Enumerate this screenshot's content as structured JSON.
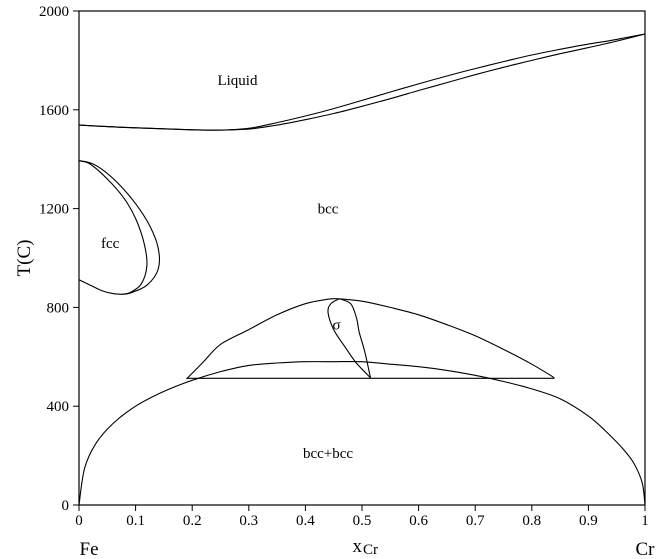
{
  "chart_data": {
    "type": "line",
    "title": "",
    "xlabel": "x",
    "xlabel_sub": "Cr",
    "ylabel": "T(C)",
    "xlim": [
      0,
      1
    ],
    "ylim": [
      0,
      2000
    ],
    "x_ticks": [
      "0",
      "0.1",
      "0.2",
      "0.3",
      "0.4",
      "0.5",
      "0.6",
      "0.7",
      "0.8",
      "0.9",
      "1"
    ],
    "y_ticks": [
      "0",
      "400",
      "800",
      "1200",
      "1600",
      "2000"
    ],
    "endpoint_labels": {
      "left": "Fe",
      "right": "Cr"
    },
    "grid": false,
    "legend": "none",
    "region_labels": [
      {
        "text": "Liquid",
        "x": 0.28,
        "y": 1700
      },
      {
        "text": "bcc",
        "x": 0.44,
        "y": 1180
      },
      {
        "text": "fcc",
        "x": 0.055,
        "y": 1040
      },
      {
        "text": "σ",
        "x": 0.455,
        "y": 710
      },
      {
        "text": "bcc+bcc",
        "x": 0.44,
        "y": 190
      }
    ],
    "series": [
      {
        "key": "liquidus",
        "values": [
          [
            0,
            1538
          ],
          [
            0.05,
            1532
          ],
          [
            0.1,
            1527
          ],
          [
            0.15,
            1523
          ],
          [
            0.2,
            1519
          ],
          [
            0.25,
            1518
          ],
          [
            0.3,
            1525
          ],
          [
            0.35,
            1548
          ],
          [
            0.4,
            1575
          ],
          [
            0.45,
            1605
          ],
          [
            0.5,
            1638
          ],
          [
            0.55,
            1672
          ],
          [
            0.6,
            1705
          ],
          [
            0.65,
            1737
          ],
          [
            0.7,
            1767
          ],
          [
            0.75,
            1795
          ],
          [
            0.8,
            1822
          ],
          [
            0.85,
            1845
          ],
          [
            0.9,
            1866
          ],
          [
            0.95,
            1885
          ],
          [
            1,
            1907
          ]
        ]
      },
      {
        "key": "solidus",
        "values": [
          [
            0,
            1538
          ],
          [
            0.05,
            1532
          ],
          [
            0.1,
            1527
          ],
          [
            0.15,
            1523
          ],
          [
            0.2,
            1519
          ],
          [
            0.25,
            1518
          ],
          [
            0.3,
            1522
          ],
          [
            0.35,
            1538
          ],
          [
            0.4,
            1560
          ],
          [
            0.45,
            1585
          ],
          [
            0.5,
            1614
          ],
          [
            0.55,
            1645
          ],
          [
            0.6,
            1678
          ],
          [
            0.65,
            1710
          ],
          [
            0.7,
            1742
          ],
          [
            0.75,
            1772
          ],
          [
            0.8,
            1800
          ],
          [
            0.85,
            1827
          ],
          [
            0.9,
            1852
          ],
          [
            0.95,
            1878
          ],
          [
            1,
            1907
          ]
        ]
      },
      {
        "key": "fcc-outer",
        "values": [
          [
            0,
            1394
          ],
          [
            0.02,
            1385
          ],
          [
            0.04,
            1360
          ],
          [
            0.07,
            1300
          ],
          [
            0.1,
            1220
          ],
          [
            0.125,
            1130
          ],
          [
            0.14,
            1040
          ],
          [
            0.14,
            955
          ],
          [
            0.12,
            890
          ],
          [
            0.09,
            858
          ],
          [
            0.075,
            853
          ]
        ]
      },
      {
        "key": "fcc-inner",
        "values": [
          [
            0,
            1394
          ],
          [
            0.02,
            1380
          ],
          [
            0.05,
            1320
          ],
          [
            0.08,
            1240
          ],
          [
            0.1,
            1160
          ],
          [
            0.115,
            1060
          ],
          [
            0.12,
            970
          ],
          [
            0.11,
            895
          ],
          [
            0.09,
            860
          ],
          [
            0.075,
            853
          ]
        ]
      },
      {
        "key": "fcc-lower",
        "values": [
          [
            0,
            912
          ],
          [
            0.02,
            890
          ],
          [
            0.04,
            868
          ],
          [
            0.06,
            856
          ],
          [
            0.075,
            853
          ]
        ]
      },
      {
        "key": "miscibility-gap",
        "values": [
          [
            0,
            0
          ],
          [
            0.01,
            150
          ],
          [
            0.03,
            250
          ],
          [
            0.06,
            330
          ],
          [
            0.1,
            400
          ],
          [
            0.15,
            460
          ],
          [
            0.2,
            505
          ],
          [
            0.25,
            540
          ],
          [
            0.3,
            565
          ],
          [
            0.35,
            575
          ],
          [
            0.4,
            580
          ],
          [
            0.45,
            580
          ],
          [
            0.5,
            580
          ],
          [
            0.55,
            570
          ],
          [
            0.6,
            560
          ],
          [
            0.65,
            545
          ],
          [
            0.7,
            525
          ],
          [
            0.75,
            500
          ],
          [
            0.8,
            470
          ],
          [
            0.85,
            430
          ],
          [
            0.9,
            360
          ],
          [
            0.93,
            300
          ],
          [
            0.96,
            230
          ],
          [
            0.98,
            170
          ],
          [
            0.995,
            90
          ],
          [
            1,
            0
          ]
        ]
      },
      {
        "key": "sigma-solvus-left",
        "values": [
          [
            0.19,
            510
          ],
          [
            0.22,
            580
          ],
          [
            0.25,
            650
          ],
          [
            0.3,
            710
          ],
          [
            0.35,
            770
          ],
          [
            0.4,
            815
          ],
          [
            0.44,
            833
          ],
          [
            0.46,
            835
          ]
        ]
      },
      {
        "key": "sigma-solvus-right",
        "values": [
          [
            0.46,
            835
          ],
          [
            0.5,
            825
          ],
          [
            0.55,
            800
          ],
          [
            0.6,
            770
          ],
          [
            0.65,
            730
          ],
          [
            0.7,
            685
          ],
          [
            0.75,
            630
          ],
          [
            0.8,
            570
          ],
          [
            0.84,
            515
          ]
        ]
      },
      {
        "key": "sigma-left",
        "values": [
          [
            0.46,
            835
          ],
          [
            0.445,
            815
          ],
          [
            0.44,
            780
          ],
          [
            0.45,
            710
          ],
          [
            0.47,
            640
          ],
          [
            0.49,
            575
          ],
          [
            0.515,
            515
          ]
        ]
      },
      {
        "key": "sigma-right",
        "values": [
          [
            0.46,
            835
          ],
          [
            0.48,
            815
          ],
          [
            0.49,
            760
          ],
          [
            0.495,
            700
          ],
          [
            0.505,
            620
          ],
          [
            0.515,
            515
          ]
        ]
      },
      {
        "key": "eutectoid",
        "values": [
          [
            0.19,
            513
          ],
          [
            0.84,
            513
          ]
        ]
      }
    ]
  }
}
